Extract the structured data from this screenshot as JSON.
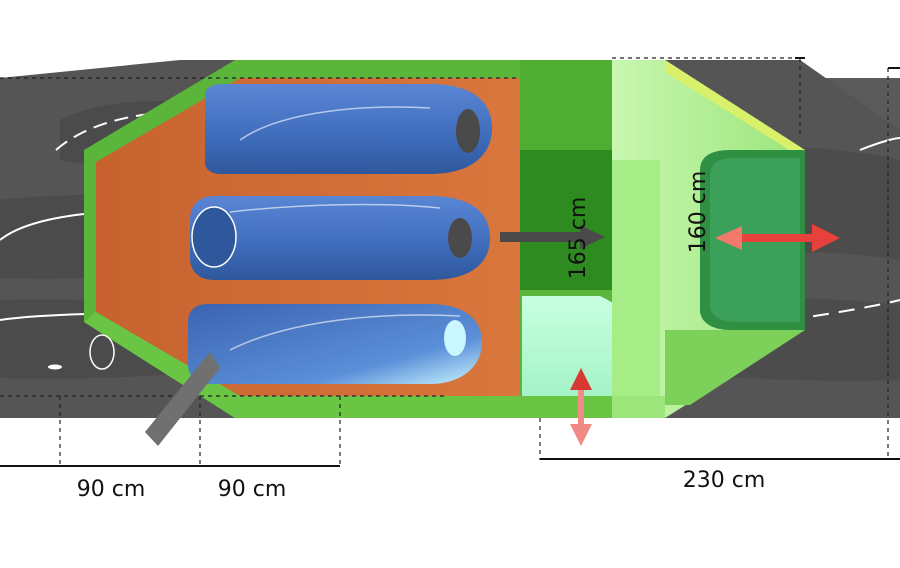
{
  "dimensions": {
    "width_1": "90 cm",
    "width_2": "90 cm",
    "length": "230 cm",
    "height_1": "165 cm",
    "height_2": "160 cm"
  },
  "colors": {
    "tent_green": "#5bb53a",
    "tent_dark_green": "#2f8a1f",
    "tent_light_green": "#b9f2a0",
    "floor_orange": "#d06c35",
    "sleeping_bag_blue": "#3f6fbf",
    "arrow_red": "#e8413c",
    "shadow_gray": "#555555"
  },
  "icons": {
    "arrow_horizontal": "double-arrow-horizontal-icon",
    "arrow_vertical": "double-arrow-vertical-icon"
  }
}
